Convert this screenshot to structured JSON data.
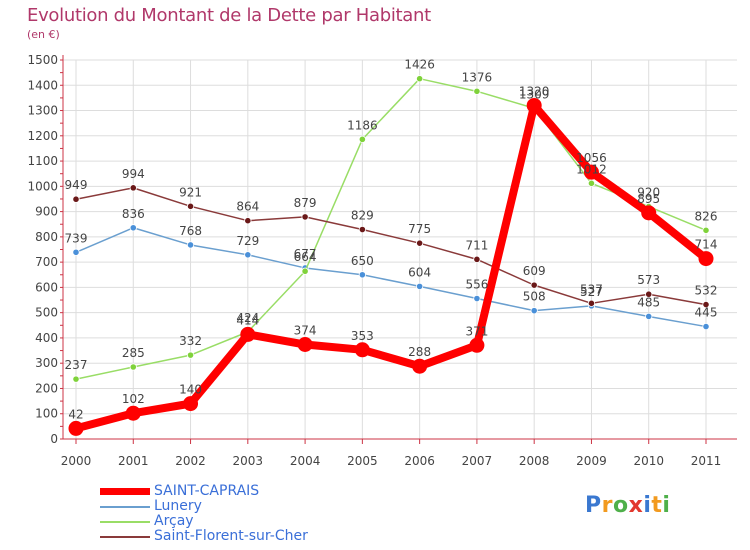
{
  "header": {
    "title": "Evolution du Montant de la Dette par Habitant",
    "unit": "(en €)"
  },
  "logo": {
    "text": "Proxiti",
    "colors": [
      "#3a78d0",
      "#f29a1f",
      "#4fb04a",
      "#e2382e",
      "#3a78d0",
      "#f29a1f",
      "#4fb04a"
    ]
  },
  "chart_data": {
    "type": "line",
    "title": "Evolution du Montant de la Dette par Habitant",
    "ylabel": "(en €)",
    "xlabel": "",
    "x": [
      "2000",
      "2001",
      "2002",
      "2003",
      "2004",
      "2005",
      "2006",
      "2007",
      "2008",
      "2009",
      "2010",
      "2011"
    ],
    "ylim": [
      0,
      1500
    ],
    "yticks": [
      0,
      100,
      200,
      300,
      400,
      500,
      600,
      700,
      800,
      900,
      1000,
      1100,
      1200,
      1300,
      1400,
      1500
    ],
    "grid": true,
    "legend_position": "bottom",
    "series": [
      {
        "name": "SAINT-CAPRAIS",
        "color": "#ff0000",
        "values": [
          42,
          102,
          140,
          414,
          374,
          353,
          288,
          371,
          1320,
          1056,
          895,
          714
        ]
      },
      {
        "name": "Lunery",
        "color": "#6a9fcf",
        "values": [
          739,
          836,
          768,
          729,
          677,
          650,
          604,
          556,
          508,
          527,
          485,
          445
        ]
      },
      {
        "name": "Arçay",
        "color": "#99dd66",
        "values": [
          237,
          285,
          332,
          424,
          664,
          1186,
          1426,
          1376,
          1309,
          1012,
          920,
          826
        ]
      },
      {
        "name": "Saint-Florent-sur-Cher",
        "color": "#8a3a3a",
        "values": [
          949,
          994,
          921,
          864,
          879,
          829,
          775,
          711,
          609,
          537,
          573,
          532
        ]
      }
    ]
  }
}
